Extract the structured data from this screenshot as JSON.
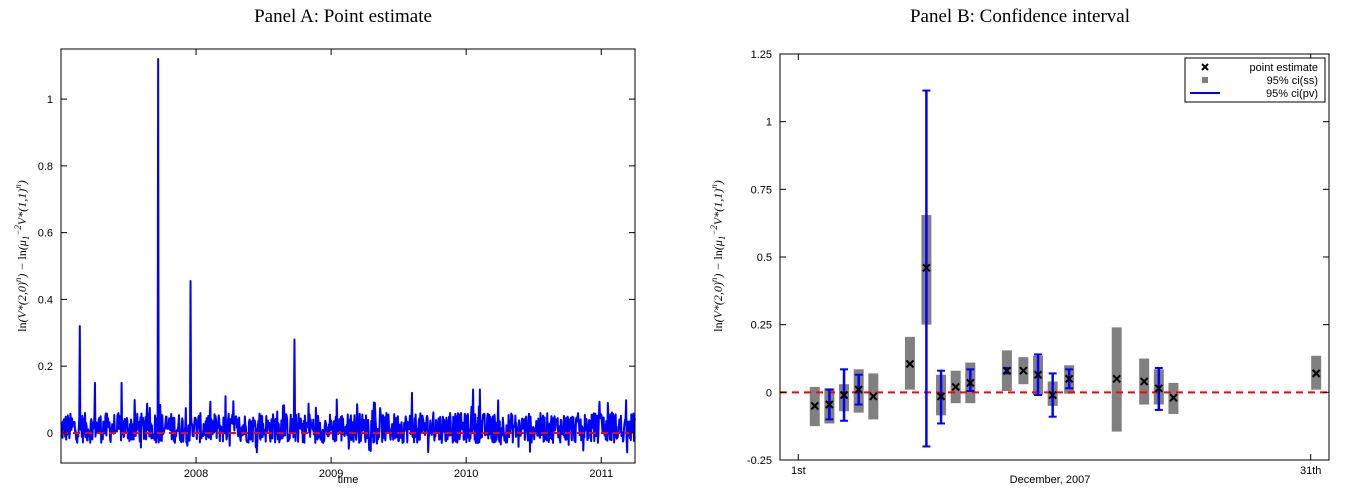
{
  "chart_data": [
    {
      "panel": "A",
      "type": "line",
      "title": "Panel A: Point estimate",
      "xlabel": "time",
      "ylabel": "ln(V*(2,0)^n) − ln(μ1^−2 V*(1,1)^n)",
      "xlim": [
        2007.0,
        2011.25
      ],
      "ylim": [
        -0.09,
        1.15
      ],
      "xticks": [
        2008,
        2009,
        2010,
        2011
      ],
      "yticks": [
        0,
        0.2,
        0.4,
        0.6,
        0.8,
        1
      ],
      "series_color": "#0000ff",
      "reference_line": {
        "y": 0,
        "color": "#ff0000",
        "style": "dashed"
      },
      "spikes": [
        {
          "x": 2007.14,
          "y": 0.32
        },
        {
          "x": 2007.72,
          "y": 1.12
        },
        {
          "x": 2007.96,
          "y": 0.455
        },
        {
          "x": 2008.73,
          "y": 0.28
        },
        {
          "x": 2007.25,
          "y": 0.15
        },
        {
          "x": 2007.45,
          "y": 0.15
        },
        {
          "x": 2008.22,
          "y": 0.11
        },
        {
          "x": 2009.04,
          "y": 0.1
        },
        {
          "x": 2009.6,
          "y": 0.12
        },
        {
          "x": 2010.05,
          "y": 0.13
        },
        {
          "x": 2010.1,
          "y": 0.13
        },
        {
          "x": 2011.05,
          "y": 0.09
        }
      ],
      "noise_band": {
        "low": -0.06,
        "high": 0.1,
        "typical_low": -0.03,
        "typical_high": 0.06
      }
    },
    {
      "panel": "B",
      "type": "errorbar",
      "title": "Panel B: Confidence interval",
      "xlabel": "December, 2007",
      "ylabel": "ln(V*(2,0)^n) − ln(μ1^−2 V*(1,1)^n)",
      "xlim": [
        0,
        30
      ],
      "ylim": [
        -0.25,
        1.25
      ],
      "xticks": [
        {
          "x": 1,
          "label": "1st"
        },
        {
          "x": 29,
          "label": "31th"
        }
      ],
      "yticks": [
        {
          "v": -0.25,
          "label": "-0.25"
        },
        {
          "v": 0,
          "label": "0"
        },
        {
          "v": 0.25,
          "label": "0.25"
        },
        {
          "v": 0.5,
          "label": "0.5"
        },
        {
          "v": 0.75,
          "label": "0.75"
        },
        {
          "v": 1,
          "label": "1"
        },
        {
          "v": 1.25,
          "label": "1.25"
        }
      ],
      "reference_line": {
        "y": 0,
        "color": "#ff0000",
        "style": "dashed"
      },
      "legend": {
        "position": "top-right",
        "entries": [
          {
            "label": "point estimate",
            "marker": "x",
            "color": "#000000"
          },
          {
            "label": "95% ci(ss)",
            "marker": "square",
            "color": "#808080"
          },
          {
            "label": "95% ci(pv)",
            "marker": "line",
            "color": "#0000ff"
          }
        ]
      },
      "points": [
        {
          "x": 1.9,
          "est": -0.05,
          "ss": [
            -0.125,
            0.02
          ],
          "pv": null
        },
        {
          "x": 2.7,
          "est": -0.045,
          "ss": [
            -0.115,
            0.015
          ],
          "pv": [
            -0.1,
            0.01
          ]
        },
        {
          "x": 3.5,
          "est": -0.01,
          "ss": [
            -0.07,
            0.03
          ],
          "pv": [
            -0.105,
            0.085
          ]
        },
        {
          "x": 4.3,
          "est": 0.01,
          "ss": [
            -0.075,
            0.085
          ],
          "pv": [
            -0.045,
            0.065
          ]
        },
        {
          "x": 5.1,
          "est": -0.015,
          "ss": [
            -0.1,
            0.07
          ],
          "pv": null
        },
        {
          "x": 7.1,
          "est": 0.105,
          "ss": [
            0.01,
            0.205
          ],
          "pv": null
        },
        {
          "x": 8.0,
          "est": 0.46,
          "ss": [
            0.25,
            0.655
          ],
          "pv": [
            -0.2,
            1.115
          ]
        },
        {
          "x": 8.8,
          "est": -0.015,
          "ss": [
            -0.085,
            0.065
          ],
          "pv": [
            -0.115,
            0.08
          ]
        },
        {
          "x": 9.6,
          "est": 0.02,
          "ss": [
            -0.04,
            0.08
          ],
          "pv": null
        },
        {
          "x": 10.4,
          "est": 0.035,
          "ss": [
            -0.04,
            0.11
          ],
          "pv": [
            0.005,
            0.085
          ]
        },
        {
          "x": 12.4,
          "est": 0.08,
          "ss": [
            0.005,
            0.155
          ],
          "pv": [
            0.07,
            0.09
          ]
        },
        {
          "x": 13.3,
          "est": 0.08,
          "ss": [
            0.03,
            0.13
          ],
          "pv": null
        },
        {
          "x": 14.1,
          "est": 0.065,
          "ss": [
            -0.01,
            0.135
          ],
          "pv": [
            -0.01,
            0.14
          ]
        },
        {
          "x": 14.9,
          "est": -0.01,
          "ss": [
            -0.05,
            0.04
          ],
          "pv": [
            -0.09,
            0.07
          ]
        },
        {
          "x": 15.8,
          "est": 0.05,
          "ss": [
            -0.005,
            0.1
          ],
          "pv": [
            0.015,
            0.085
          ]
        },
        {
          "x": 18.4,
          "est": 0.05,
          "ss": [
            -0.145,
            0.24
          ],
          "pv": null
        },
        {
          "x": 19.9,
          "est": 0.04,
          "ss": [
            -0.045,
            0.125
          ],
          "pv": null
        },
        {
          "x": 20.7,
          "est": 0.015,
          "ss": [
            -0.045,
            0.085
          ],
          "pv": [
            -0.065,
            0.09
          ]
        },
        {
          "x": 21.5,
          "est": -0.02,
          "ss": [
            -0.08,
            0.035
          ],
          "pv": null
        },
        {
          "x": 29.3,
          "est": 0.07,
          "ss": [
            0.01,
            0.135
          ],
          "pv": null
        }
      ]
    }
  ]
}
